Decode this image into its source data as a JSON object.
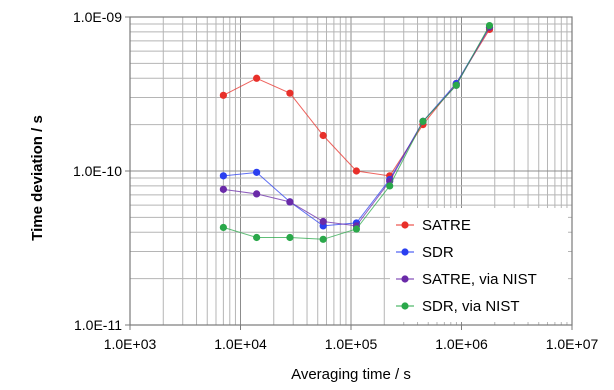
{
  "chart_data": {
    "type": "line",
    "title": "",
    "xlabel": "Averaging time / s",
    "ylabel": "Time deviation / s",
    "x_scale": "log",
    "y_scale": "log",
    "xlim": [
      1000,
      10000000
    ],
    "ylim": [
      1e-11,
      1e-09
    ],
    "x_ticks": [
      "1.0E+03",
      "1.0E+04",
      "1.0E+05",
      "1.0E+06",
      "1.0E+07"
    ],
    "y_ticks": [
      "1.0E-11",
      "1.0E-10",
      "1.0E-09"
    ],
    "grid": true,
    "legend_position": "bottom-right",
    "series": [
      {
        "name": "SATRE",
        "color": "#e8302a",
        "x": [
          7000,
          14000,
          28000,
          56000,
          112000,
          224000,
          448000,
          896000,
          1792000
        ],
        "y": [
          3.1e-10,
          4e-10,
          3.2e-10,
          1.7e-10,
          1e-10,
          9.3e-11,
          2e-10,
          3.7e-10,
          8.3e-10
        ]
      },
      {
        "name": "SDR",
        "color": "#2a3ff0",
        "x": [
          7000,
          14000,
          28000,
          56000,
          112000,
          224000,
          448000,
          896000,
          1792000
        ],
        "y": [
          9.3e-11,
          9.8e-11,
          6.3e-11,
          4.4e-11,
          4.6e-11,
          8.8e-11,
          2.1e-10,
          3.7e-10,
          8.6e-10
        ]
      },
      {
        "name": "SATRE, via NIST",
        "color": "#6a2aa8",
        "x": [
          7000,
          14000,
          28000,
          56000,
          112000,
          224000,
          448000,
          896000,
          1792000
        ],
        "y": [
          7.6e-11,
          7.1e-11,
          6.3e-11,
          4.7e-11,
          4.4e-11,
          8.6e-11,
          2.1e-10,
          3.6e-10,
          8.6e-10
        ]
      },
      {
        "name": "SDR, via NIST",
        "color": "#2aa84a",
        "x": [
          7000,
          14000,
          28000,
          56000,
          112000,
          224000,
          448000,
          896000,
          1792000
        ],
        "y": [
          4.3e-11,
          3.7e-11,
          3.7e-11,
          3.6e-11,
          4.2e-11,
          8e-11,
          2.1e-10,
          3.6e-10,
          8.8e-10
        ]
      }
    ]
  }
}
